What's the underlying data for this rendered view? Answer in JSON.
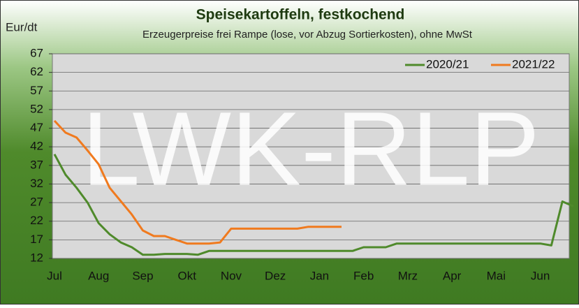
{
  "chart_data": {
    "type": "line",
    "title": "Speisekartoffeln, festkochend",
    "subtitle": "Erzeugerpreise frei Rampe (lose, vor Abzug Sortierkosten), ohne MwSt",
    "y_label": "Eur/dt",
    "watermark": "LWK-RLP",
    "categories": [
      "Jul",
      null,
      null,
      null,
      "Aug",
      null,
      null,
      null,
      "Sep",
      null,
      null,
      null,
      "Okt",
      null,
      null,
      null,
      "Nov",
      null,
      null,
      null,
      "Dez",
      null,
      null,
      null,
      "Jan",
      null,
      null,
      null,
      "Feb",
      null,
      null,
      null,
      "Mrz",
      null,
      null,
      null,
      "Apr",
      null,
      null,
      null,
      "Mai",
      null,
      null,
      null,
      "Jun",
      null,
      null,
      null
    ],
    "series": [
      {
        "name": "2020/21",
        "color": "#4f8a2b",
        "values": [
          40,
          34.5,
          31,
          27,
          21.5,
          18.5,
          16.3,
          15,
          13,
          13,
          13.2,
          13.2,
          13.2,
          13,
          14,
          14,
          14,
          14,
          14,
          14,
          14,
          14,
          14,
          14,
          14,
          14,
          14,
          14,
          15,
          15,
          15,
          16,
          16,
          16,
          16,
          16,
          16,
          16,
          16,
          16,
          16,
          16,
          16,
          16,
          16,
          15.5,
          27.3,
          26
        ]
      },
      {
        "name": "2021/22",
        "color": "#f07a1e",
        "values": [
          49,
          45.8,
          44.5,
          41,
          37.3,
          31,
          27.4,
          23.8,
          19.5,
          18,
          18,
          17,
          16,
          16,
          16,
          16.3,
          20,
          20,
          20,
          20,
          20,
          20,
          20,
          20.5,
          20.5,
          20.5,
          20.5,
          null,
          null,
          null,
          null,
          null,
          null,
          null,
          null,
          null,
          null,
          null,
          null,
          null,
          null,
          null,
          null,
          null,
          null,
          null,
          null,
          null
        ]
      }
    ],
    "ylim": [
      12,
      67
    ],
    "yticks": [
      12,
      17,
      22,
      27,
      32,
      37,
      42,
      47,
      52,
      57,
      62,
      67
    ],
    "grid": true,
    "legend": "top-right"
  }
}
